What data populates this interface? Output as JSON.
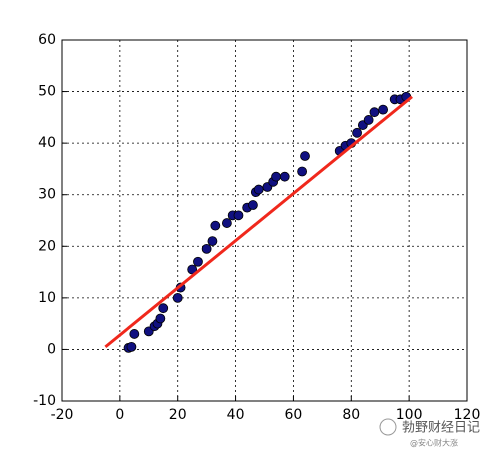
{
  "chart_data": {
    "type": "scatter",
    "points": {
      "color": "#101080",
      "x": [
        3,
        4,
        5,
        10,
        12,
        13,
        14,
        15,
        20,
        21,
        25,
        27,
        30,
        32,
        33,
        37,
        39,
        41,
        44,
        46,
        47,
        48,
        51,
        53,
        54,
        57,
        63,
        64,
        76,
        78,
        80,
        82,
        84,
        86,
        88,
        91,
        95,
        97,
        99
      ],
      "y": [
        0.3,
        0.5,
        3,
        3.5,
        4.5,
        5,
        6,
        8,
        10,
        12,
        15.5,
        17,
        19.5,
        21,
        24,
        24.5,
        26,
        26,
        27.5,
        28,
        30.5,
        31,
        31.5,
        32.5,
        33.5,
        33.5,
        34.5,
        37.5,
        38.5,
        39.5,
        40,
        42,
        43.5,
        44.5,
        46,
        46.5,
        48.5,
        48.5,
        49
      ]
    },
    "fit_line": {
      "color": "#f0281c",
      "x": [
        -5,
        101
      ],
      "y": [
        0.5,
        49
      ]
    },
    "xlim": [
      -20,
      120
    ],
    "ylim": [
      -10,
      60
    ],
    "xticks": [
      -20,
      0,
      20,
      40,
      60,
      80,
      100,
      120
    ],
    "yticks": [
      -10,
      0,
      10,
      20,
      30,
      40,
      50,
      60
    ],
    "grid": true
  },
  "watermark": {
    "title": "勃野财经日记",
    "handle": "@安心财大涨"
  }
}
